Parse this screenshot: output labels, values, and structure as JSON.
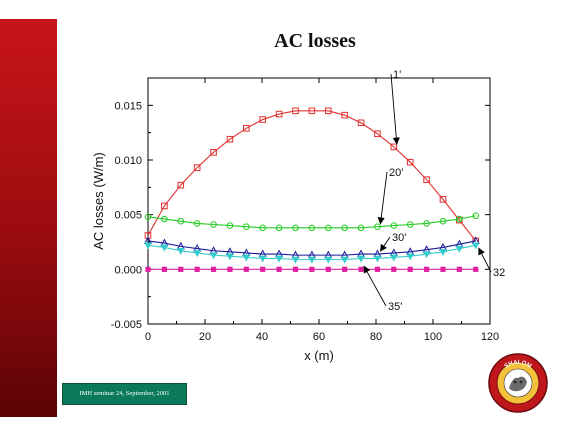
{
  "slide": {
    "title": "AC losses",
    "footer": "IMH seminar 24, September, 2001",
    "logo_text": "SHALOM"
  },
  "colors": {
    "sidebar_top": "#c8151a",
    "sidebar_bottom": "#5b0406",
    "footer_bg": "#0a7a5a",
    "series_1": "#e03030",
    "series_20": "#22cc22",
    "series_30": "#1a1a99",
    "series_32": "#33cccc",
    "series_35": "#e020a0"
  },
  "chart_data": {
    "type": "line",
    "title": "",
    "xlabel": "x (m)",
    "ylabel": "AC losses (W/m)",
    "xlim": [
      0,
      120
    ],
    "ylim": [
      -0.005,
      0.0175
    ],
    "xticks": [
      0,
      20,
      40,
      60,
      80,
      100,
      120
    ],
    "yticks": [
      -0.005,
      0.0,
      0.005,
      0.01,
      0.015
    ],
    "xtick_labels": [
      "0",
      "20",
      "40",
      "60",
      "80",
      "100",
      "120"
    ],
    "ytick_labels": [
      "-0.005",
      "0.000",
      "0.005",
      "0.010",
      "0.015"
    ],
    "grid": false,
    "x": [
      0,
      5.75,
      11.5,
      17.25,
      23,
      28.75,
      34.5,
      40.25,
      46,
      51.75,
      57.5,
      63.25,
      69,
      74.75,
      80.5,
      86.25,
      92,
      97.75,
      103.5,
      109.25,
      115
    ],
    "series": [
      {
        "name": "1'",
        "marker": "square-open",
        "color": "#e03030",
        "values": [
          0.0031,
          0.0058,
          0.0077,
          0.0093,
          0.0107,
          0.0119,
          0.0129,
          0.0137,
          0.0142,
          0.0145,
          0.0145,
          0.0145,
          0.0141,
          0.0134,
          0.0124,
          0.0112,
          0.0098,
          0.0082,
          0.0064,
          0.0045,
          0.0026
        ]
      },
      {
        "name": "20'",
        "marker": "circle-open",
        "color": "#22cc22",
        "values": [
          0.0048,
          0.0046,
          0.0044,
          0.0042,
          0.0041,
          0.004,
          0.0039,
          0.0038,
          0.0038,
          0.0038,
          0.0038,
          0.0038,
          0.0038,
          0.0038,
          0.0039,
          0.004,
          0.0041,
          0.0042,
          0.0044,
          0.0046,
          0.0049
        ]
      },
      {
        "name": "30'",
        "marker": "triangle-open",
        "color": "#1a1a99",
        "values": [
          0.0026,
          0.0024,
          0.0021,
          0.0019,
          0.0017,
          0.0016,
          0.0015,
          0.0014,
          0.0014,
          0.0013,
          0.0013,
          0.0013,
          0.0013,
          0.0014,
          0.0014,
          0.0015,
          0.0016,
          0.0018,
          0.002,
          0.0023,
          0.0026
        ]
      },
      {
        "name": "32'",
        "marker": "triangle-down-filled",
        "color": "#33cccc",
        "values": [
          0.0022,
          0.002,
          0.0017,
          0.0015,
          0.0013,
          0.0012,
          0.0011,
          0.001,
          0.001,
          0.0009,
          0.0009,
          0.0009,
          0.0009,
          0.001,
          0.001,
          0.0011,
          0.0012,
          0.0014,
          0.0016,
          0.0019,
          0.0022
        ]
      },
      {
        "name": "35'",
        "marker": "square-filled",
        "color": "#e020a0",
        "values": [
          0.0,
          0.0,
          0.0,
          0.0,
          0.0,
          0.0,
          0.0,
          0.0,
          0.0,
          0.0,
          0.0,
          0.0,
          0.0,
          0.0,
          0.0,
          0.0,
          0.0,
          0.0,
          0.0,
          0.0,
          0.0
        ]
      }
    ],
    "annotations": [
      {
        "text": "1'",
        "series": "1'"
      },
      {
        "text": "20'",
        "series": "20'"
      },
      {
        "text": "30'",
        "series": "30'"
      },
      {
        "text": "32'",
        "series": "32'"
      },
      {
        "text": "35'",
        "series": "35'"
      }
    ]
  }
}
